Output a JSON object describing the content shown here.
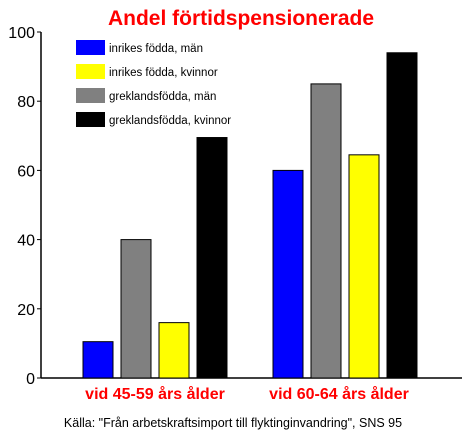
{
  "chart_data": {
    "type": "bar",
    "title": "Andel förtidspensionerade",
    "categories": [
      "vid 45-59 års ålder",
      "vid 60-64 års ålder"
    ],
    "series": [
      {
        "name": "inrikes födda, män",
        "color": "#0000ff",
        "values": [
          10.5,
          60
        ]
      },
      {
        "name": "inrikes födda, kvinnor",
        "color": "#ffff00",
        "values": [
          16,
          64.5
        ]
      },
      {
        "name": "greklandsfödda, män",
        "color": "#808080",
        "values": [
          40,
          85
        ]
      },
      {
        "name": "greklandsfödda, kvinnor",
        "color": "#000000",
        "values": [
          69.5,
          94
        ]
      }
    ],
    "bar_order": [
      0,
      2,
      1,
      3
    ],
    "ylim": [
      0,
      100
    ],
    "yticks": [
      0,
      20,
      40,
      60,
      80,
      100
    ],
    "grid": false,
    "legend_position": "top-left",
    "xlabel": "",
    "ylabel": "",
    "source": "Källa: \"Från arbetskraftsimport till flyktinginvandring\", SNS 95",
    "colors": {
      "title": "#ff0000",
      "category_labels": "#ff0000",
      "axis": "#000000",
      "bar_outline": "#000000"
    }
  }
}
